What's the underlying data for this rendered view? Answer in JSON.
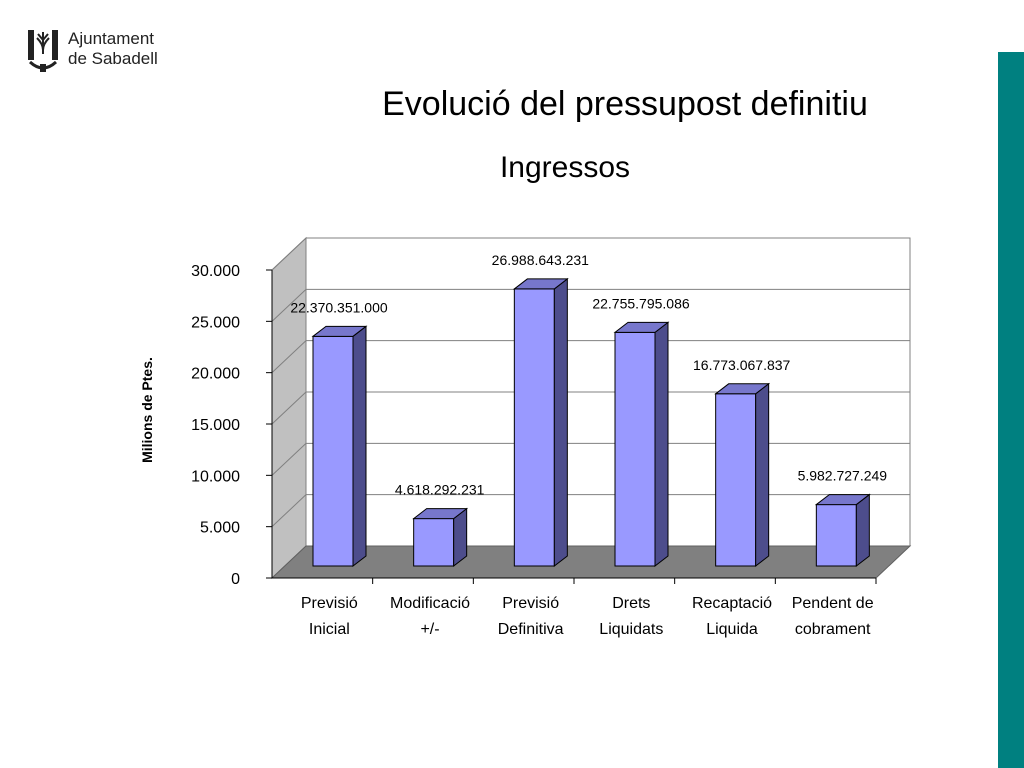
{
  "logo": {
    "line1": "Ajuntament",
    "line2": "de Sabadell"
  },
  "colors": {
    "accent": "#008080",
    "bar_front": "#9999ff",
    "bar_side": "#4d4d8c",
    "bar_top": "#7777cc",
    "floor": "#808080",
    "wall": "#c0c0c0"
  },
  "chart_data": {
    "type": "bar",
    "title": "Evolució del pressupost definitiu",
    "subtitle": "Ingressos",
    "ylabel": "Milions de Ptes.",
    "ylim": [
      0,
      30000
    ],
    "yticks": [
      0,
      5000,
      10000,
      15000,
      20000,
      25000,
      30000
    ],
    "ytick_labels": [
      "0",
      "5.000",
      "10.000",
      "15.000",
      "20.000",
      "25.000",
      "30.000"
    ],
    "grid": true,
    "categories": [
      [
        "Previsió",
        "Inicial"
      ],
      [
        "Modificació",
        "+/-"
      ],
      [
        "Previsió",
        "Definitiva"
      ],
      [
        "Drets",
        "Liquidats"
      ],
      [
        "Recaptació",
        "Liquida"
      ],
      [
        "Pendent de",
        "cobrament"
      ]
    ],
    "values": [
      22370.351,
      4618.292231,
      26988.643231,
      22755.795086,
      16773.067837,
      5982.727249
    ],
    "data_labels": [
      "22.370.351.000",
      "4.618.292.231",
      "26.988.643.231",
      "22.755.795.086",
      "16.773.067.837",
      "5.982.727.249"
    ]
  }
}
